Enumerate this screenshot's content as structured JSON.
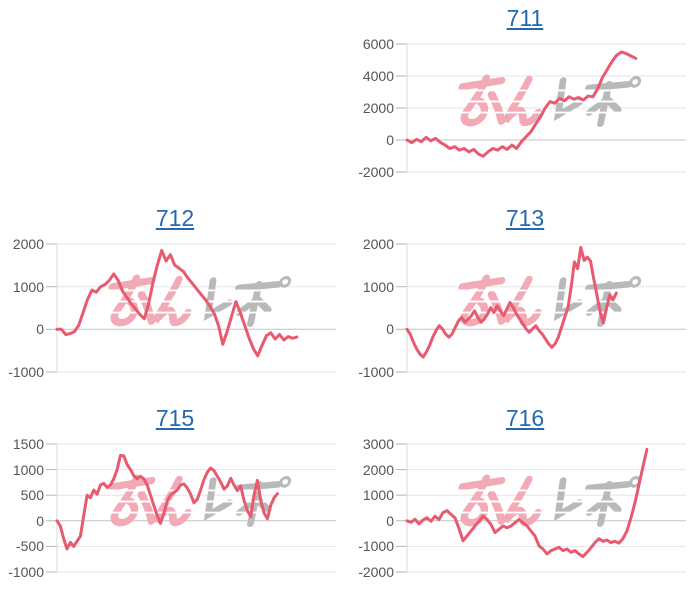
{
  "style": {
    "background": "#ffffff",
    "line_color": "#e85a70",
    "grid_color": "#e6e6e6",
    "zero_line_color": "#c4c4c4",
    "axis_color": "#d8d8d8",
    "tick_color": "#b5b5b5",
    "tick_label_color": "#565656",
    "link_color": "#2569ad"
  },
  "watermark": {
    "pink_text": "みん",
    "gray_text": "レポ",
    "full_text": "みんレポ",
    "pink_color": "#f2aab6",
    "gray_color": "#b9b9b9"
  },
  "chart_data": [
    {
      "type": "line",
      "title": "711",
      "ymin": -2000,
      "ymax": 6000,
      "yticks": [
        6000,
        4000,
        2000,
        0,
        -2000
      ],
      "span": 0.82,
      "grid": true,
      "values": [
        0,
        -170,
        40,
        -105,
        170,
        -50,
        100,
        -150,
        -320,
        -530,
        -420,
        -630,
        -530,
        -740,
        -590,
        -880,
        -1010,
        -740,
        -530,
        -630,
        -420,
        -590,
        -320,
        -530,
        -105,
        210,
        520,
        1000,
        1450,
        2000,
        2400,
        2300,
        2600,
        2450,
        2700,
        2550,
        2650,
        2500,
        2750,
        2700,
        3200,
        3900,
        4400,
        4900,
        5300,
        5500,
        5400,
        5250,
        5100
      ]
    },
    {
      "type": "line",
      "title": "712",
      "ymin": -1000,
      "ymax": 2000,
      "yticks": [
        2000,
        1000,
        0,
        -1000
      ],
      "span": 0.86,
      "grid": true,
      "values": [
        0,
        0,
        -120,
        -100,
        -50,
        100,
        400,
        700,
        920,
        870,
        1000,
        1050,
        1150,
        1300,
        1150,
        900,
        750,
        600,
        480,
        350,
        250,
        600,
        1100,
        1500,
        1850,
        1600,
        1750,
        1500,
        1430,
        1350,
        1200,
        1080,
        950,
        820,
        700,
        550,
        380,
        100,
        -350,
        -50,
        300,
        650,
        400,
        100,
        -200,
        -450,
        -620,
        -380,
        -150,
        -80,
        -230,
        -120,
        -250,
        -170,
        -210,
        -180
      ]
    },
    {
      "type": "line",
      "title": "713",
      "ymin": -1000,
      "ymax": 2000,
      "yticks": [
        2000,
        1000,
        0,
        -1000
      ],
      "span": 0.75,
      "grid": true,
      "values": [
        0,
        -110,
        -300,
        -460,
        -575,
        -650,
        -535,
        -380,
        -185,
        -30,
        85,
        10,
        -110,
        -185,
        -110,
        45,
        200,
        280,
        165,
        240,
        320,
        435,
        280,
        165,
        240,
        355,
        510,
        395,
        550,
        435,
        320,
        475,
        630,
        510,
        355,
        240,
        125,
        10,
        -70,
        10,
        85,
        -30,
        -110,
        -225,
        -340,
        -420,
        -340,
        -185,
        45,
        280,
        510,
        1000,
        1580,
        1420,
        1920,
        1615,
        1690,
        1600,
        1190,
        810,
        400,
        150,
        500,
        810,
        690,
        850
      ]
    },
    {
      "type": "line",
      "title": "715",
      "ymin": -1000,
      "ymax": 1500,
      "yticks": [
        1500,
        1000,
        500,
        0,
        -500,
        -1000
      ],
      "span": 0.79,
      "grid": true,
      "values": [
        0,
        -100,
        -350,
        -550,
        -420,
        -500,
        -400,
        -300,
        100,
        500,
        450,
        600,
        520,
        700,
        730,
        650,
        700,
        820,
        1000,
        1280,
        1270,
        1100,
        1000,
        880,
        820,
        870,
        820,
        700,
        500,
        300,
        100,
        -50,
        150,
        380,
        500,
        550,
        600,
        700,
        720,
        640,
        520,
        350,
        420,
        600,
        800,
        950,
        1030,
        980,
        870,
        760,
        620,
        680,
        830,
        700,
        590,
        680,
        400,
        200,
        80,
        500,
        790,
        400,
        150,
        40,
        300,
        450,
        530
      ]
    },
    {
      "type": "line",
      "title": "716",
      "ymin": -2000,
      "ymax": 3000,
      "yticks": [
        3000,
        2000,
        1000,
        0,
        -1000,
        -2000
      ],
      "span": 0.86,
      "grid": true,
      "values": [
        0,
        -60,
        60,
        -120,
        30,
        120,
        -15,
        180,
        50,
        320,
        400,
        250,
        115,
        -300,
        -780,
        -590,
        -400,
        -205,
        -15,
        180,
        50,
        -140,
        -460,
        -333,
        -205,
        -270,
        -205,
        -75,
        50,
        -75,
        -205,
        -400,
        -590,
        -975,
        -1100,
        -1295,
        -1165,
        -1100,
        -1040,
        -1165,
        -1100,
        -1230,
        -1165,
        -1295,
        -1400,
        -1230,
        -1050,
        -850,
        -700,
        -800,
        -750,
        -850,
        -800,
        -870,
        -700,
        -400,
        100,
        700,
        1400,
        2100,
        2790
      ]
    }
  ]
}
